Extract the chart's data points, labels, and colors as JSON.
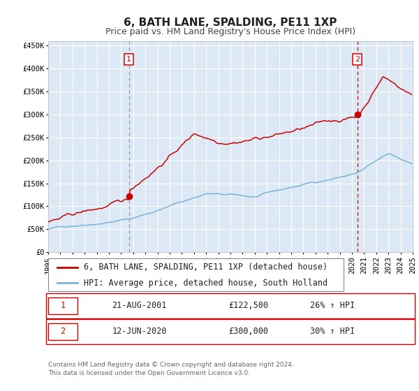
{
  "title": "6, BATH LANE, SPALDING, PE11 1XP",
  "subtitle": "Price paid vs. HM Land Registry's House Price Index (HPI)",
  "ylim": [
    0,
    460000
  ],
  "yticks": [
    0,
    50000,
    100000,
    150000,
    200000,
    250000,
    300000,
    350000,
    400000,
    450000
  ],
  "ytick_labels": [
    "£0",
    "£50K",
    "£100K",
    "£150K",
    "£200K",
    "£250K",
    "£300K",
    "£350K",
    "£400K",
    "£450K"
  ],
  "x_start_year": 1995,
  "x_end_year": 2025,
  "hpi_color": "#7ab3d8",
  "price_color": "#cc0000",
  "marker_color": "#cc0000",
  "vline1_color": "#999999",
  "vline2_color": "#cc0000",
  "bg_color": "#dce8f5",
  "grid_color": "#ffffff",
  "sale1_price": 122500,
  "sale1_year": 2001.64,
  "sale2_price": 300000,
  "sale2_year": 2020.45,
  "legend_label1": "6, BATH LANE, SPALDING, PE11 1XP (detached house)",
  "legend_label2": "HPI: Average price, detached house, South Holland",
  "sale1_date": "21-AUG-2001",
  "sale1_price_str": "£122,500",
  "sale1_pct": "26% ↑ HPI",
  "sale2_date": "12-JUN-2020",
  "sale2_price_str": "£300,000",
  "sale2_pct": "30% ↑ HPI",
  "footnote1": "Contains HM Land Registry data © Crown copyright and database right 2024.",
  "footnote2": "This data is licensed under the Open Government Licence v3.0.",
  "title_fontsize": 11,
  "subtitle_fontsize": 9,
  "tick_fontsize": 7.5,
  "legend_fontsize": 8.5,
  "table_fontsize": 8.5,
  "footnote_fontsize": 6.5
}
